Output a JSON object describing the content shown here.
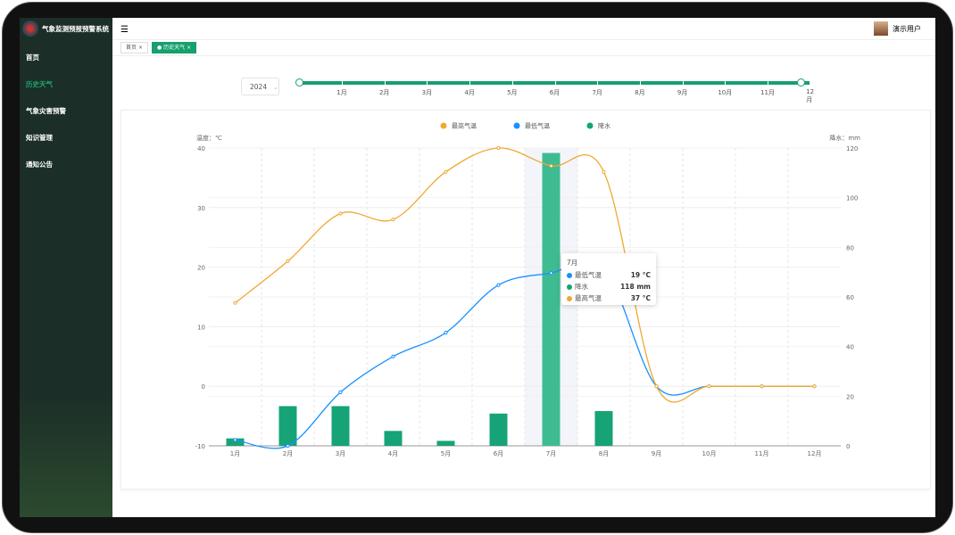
{
  "app": {
    "title": "气象监测预报预警系统"
  },
  "sidebar": {
    "items": [
      {
        "label": "首页"
      },
      {
        "label": "历史天气",
        "active": true
      },
      {
        "label": "气象灾害预警"
      },
      {
        "label": "知识管理"
      },
      {
        "label": "通知公告"
      }
    ]
  },
  "header": {
    "user": "演示用户"
  },
  "tabs": [
    {
      "label": "首页"
    },
    {
      "label": "历史天气",
      "active": true
    }
  ],
  "filter": {
    "year": "2024",
    "months": [
      "1月",
      "2月",
      "3月",
      "4月",
      "5月",
      "6月",
      "7月",
      "8月",
      "9月",
      "10月",
      "11月",
      "12月"
    ]
  },
  "colors": {
    "accent": "#16a06e",
    "max": "#f0a830",
    "min": "#1890ff",
    "rain": "#16a377"
  },
  "tooltip": {
    "title": "7月",
    "rows": [
      {
        "name": "最低气温",
        "value": "19 °C",
        "color": "#1890ff"
      },
      {
        "name": "降水",
        "value": "118 mm",
        "color": "#16a377"
      },
      {
        "name": "最高气温",
        "value": "37 °C",
        "color": "#f0a830"
      }
    ]
  },
  "chart_data": {
    "type": "bar+line",
    "categories": [
      "1月",
      "2月",
      "3月",
      "4月",
      "5月",
      "6月",
      "7月",
      "8月",
      "9月",
      "10月",
      "11月",
      "12月"
    ],
    "ylabel_left": "温度：℃",
    "ylabel_right": "降水：mm",
    "ylim_left": [
      -10,
      40
    ],
    "yticks_left": [
      -10,
      0,
      10,
      20,
      30,
      40
    ],
    "ylim_right": [
      0,
      120
    ],
    "yticks_right": [
      0,
      20,
      40,
      60,
      80,
      100,
      120
    ],
    "legend_position": "top",
    "highlighted": "7月",
    "series": [
      {
        "name": "最高气温",
        "type": "line",
        "axis": "left",
        "values": [
          14,
          21,
          29,
          28,
          36,
          40,
          37,
          36,
          0,
          0,
          0,
          0
        ]
      },
      {
        "name": "最低气温",
        "type": "line",
        "axis": "left",
        "values": [
          -9,
          -10,
          -1,
          5,
          9,
          17,
          19,
          20,
          0,
          0,
          0,
          0
        ]
      },
      {
        "name": "降水",
        "type": "bar",
        "axis": "right",
        "values": [
          3,
          16,
          16,
          6,
          2,
          13,
          118,
          14,
          0,
          0,
          0,
          0
        ]
      }
    ]
  }
}
